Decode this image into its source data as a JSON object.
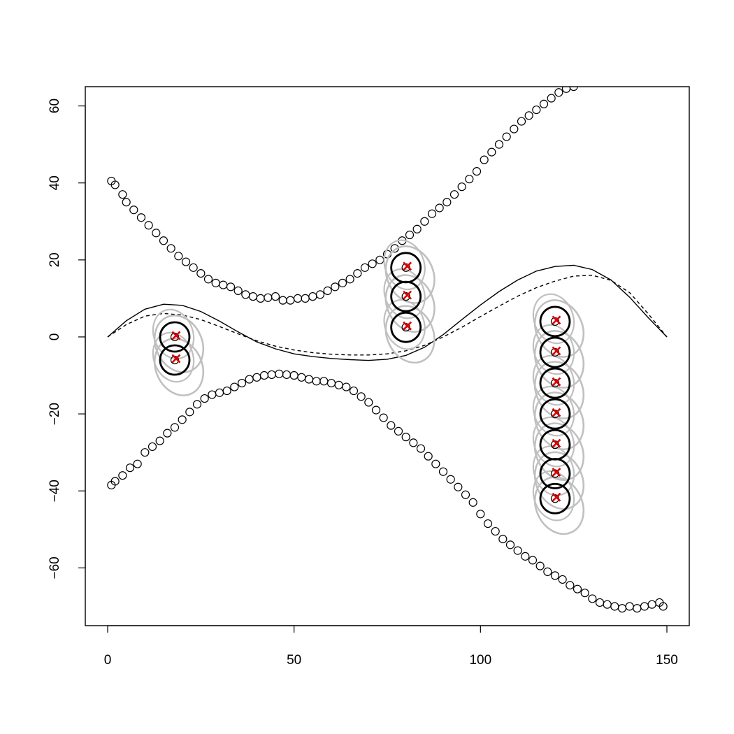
{
  "chart_data": {
    "type": "scatter",
    "title": "",
    "xlabel": "",
    "ylabel": "",
    "xlim": [
      -6,
      156
    ],
    "ylim": [
      -75,
      65
    ],
    "x_ticks": [
      0,
      50,
      100,
      150
    ],
    "y_ticks": [
      -60,
      -40,
      -20,
      0,
      20,
      40,
      60
    ],
    "x_tick_labels": [
      "0",
      "50",
      "100",
      "150"
    ],
    "y_tick_labels": [
      "−60",
      "−40",
      "−20",
      "0",
      "20",
      "40",
      "60"
    ],
    "grid": false,
    "legend": "none",
    "upper_track_points": [
      [
        1,
        40.5
      ],
      [
        2,
        39.5
      ],
      [
        4,
        37
      ],
      [
        5,
        35
      ],
      [
        7,
        33
      ],
      [
        9,
        31
      ],
      [
        11,
        29
      ],
      [
        13,
        27
      ],
      [
        15,
        25
      ],
      [
        17,
        23
      ],
      [
        19,
        21
      ],
      [
        21,
        19.5
      ],
      [
        23,
        18
      ],
      [
        25,
        16.5
      ],
      [
        27,
        15
      ],
      [
        29,
        14
      ],
      [
        31,
        13.5
      ],
      [
        33,
        13
      ],
      [
        35,
        12
      ],
      [
        37,
        11
      ],
      [
        39,
        10.5
      ],
      [
        41,
        10
      ],
      [
        43,
        10.2
      ],
      [
        45,
        10.5
      ],
      [
        47,
        9.5
      ],
      [
        49,
        9.5
      ],
      [
        51,
        10
      ],
      [
        53,
        10
      ],
      [
        55,
        10.5
      ],
      [
        57,
        11
      ],
      [
        59,
        12
      ],
      [
        61,
        13
      ],
      [
        63,
        14
      ],
      [
        65,
        15
      ],
      [
        67,
        16.5
      ],
      [
        69,
        18
      ],
      [
        71,
        19
      ],
      [
        73,
        20
      ],
      [
        75,
        21.5
      ],
      [
        77,
        23
      ],
      [
        79,
        25
      ],
      [
        81,
        26.5
      ],
      [
        83,
        28
      ],
      [
        85,
        30
      ],
      [
        87,
        32
      ],
      [
        89,
        33.5
      ],
      [
        91,
        35
      ],
      [
        93,
        37
      ],
      [
        95,
        39
      ],
      [
        97,
        41
      ],
      [
        99,
        43
      ],
      [
        101,
        46
      ],
      [
        103,
        48
      ],
      [
        105,
        50
      ],
      [
        107,
        52
      ],
      [
        109,
        54
      ],
      [
        111,
        56
      ],
      [
        113,
        57.5
      ],
      [
        115,
        59
      ],
      [
        117,
        60.5
      ],
      [
        119,
        62
      ],
      [
        121,
        63.5
      ],
      [
        123,
        64.5
      ],
      [
        125,
        65
      ]
    ],
    "lower_track_points": [
      [
        1,
        -38.5
      ],
      [
        2,
        -37.5
      ],
      [
        4,
        -36
      ],
      [
        6,
        -34
      ],
      [
        8,
        -33
      ],
      [
        10,
        -30
      ],
      [
        12,
        -28.5
      ],
      [
        14,
        -27
      ],
      [
        16,
        -25
      ],
      [
        18,
        -23.5
      ],
      [
        20,
        -21.5
      ],
      [
        22,
        -19.5
      ],
      [
        24,
        -17.5
      ],
      [
        26,
        -16
      ],
      [
        28,
        -15
      ],
      [
        30,
        -14.5
      ],
      [
        32,
        -14
      ],
      [
        34,
        -13
      ],
      [
        36,
        -12
      ],
      [
        38,
        -11
      ],
      [
        40,
        -10.5
      ],
      [
        42,
        -10
      ],
      [
        44,
        -9.8
      ],
      [
        46,
        -9.6
      ],
      [
        48,
        -9.8
      ],
      [
        50,
        -10
      ],
      [
        52,
        -10.5
      ],
      [
        54,
        -11
      ],
      [
        56,
        -11.5
      ],
      [
        58,
        -11.5
      ],
      [
        60,
        -12
      ],
      [
        62,
        -12.5
      ],
      [
        64,
        -13
      ],
      [
        66,
        -14
      ],
      [
        68,
        -15.5
      ],
      [
        70,
        -17
      ],
      [
        72,
        -19
      ],
      [
        74,
        -21
      ],
      [
        76,
        -23
      ],
      [
        78,
        -24.5
      ],
      [
        80,
        -26
      ],
      [
        82,
        -27.5
      ],
      [
        84,
        -29
      ],
      [
        86,
        -31
      ],
      [
        88,
        -33
      ],
      [
        90,
        -35
      ],
      [
        92,
        -37
      ],
      [
        94,
        -39
      ],
      [
        96,
        -41
      ],
      [
        98,
        -43
      ],
      [
        100,
        -46
      ],
      [
        102,
        -48.5
      ],
      [
        104,
        -50.5
      ],
      [
        106,
        -52.5
      ],
      [
        108,
        -54
      ],
      [
        110,
        -55.5
      ],
      [
        112,
        -57
      ],
      [
        114,
        -58
      ],
      [
        116,
        -59.5
      ],
      [
        118,
        -61
      ],
      [
        120,
        -62
      ],
      [
        122,
        -63
      ],
      [
        124,
        -64.5
      ],
      [
        126,
        -65.5
      ],
      [
        128,
        -66.5
      ],
      [
        130,
        -68
      ],
      [
        132,
        -69
      ],
      [
        134,
        -69.5
      ],
      [
        136,
        -70
      ],
      [
        138,
        -70.5
      ],
      [
        140,
        -70
      ],
      [
        142,
        -70.5
      ],
      [
        144,
        -70
      ],
      [
        146,
        -69.5
      ],
      [
        148,
        -69
      ],
      [
        149,
        -70
      ]
    ],
    "solid_curve": [
      [
        0,
        0
      ],
      [
        5,
        4.2
      ],
      [
        10,
        7.2
      ],
      [
        15,
        8.5
      ],
      [
        20,
        8.2
      ],
      [
        25,
        6.6
      ],
      [
        30,
        4.1
      ],
      [
        35,
        1.3
      ],
      [
        40,
        -1.3
      ],
      [
        45,
        -3.1
      ],
      [
        50,
        -4.4
      ],
      [
        55,
        -5.1
      ],
      [
        60,
        -5.6
      ],
      [
        65,
        -5.9
      ],
      [
        70,
        -6.1
      ],
      [
        75,
        -5.8
      ],
      [
        80,
        -4.8
      ],
      [
        85,
        -2.7
      ],
      [
        90,
        0.6
      ],
      [
        95,
        4.5
      ],
      [
        100,
        8.3
      ],
      [
        105,
        11.8
      ],
      [
        110,
        14.8
      ],
      [
        115,
        17.1
      ],
      [
        120,
        18.3
      ],
      [
        125,
        18.6
      ],
      [
        130,
        17.5
      ],
      [
        135,
        14.8
      ],
      [
        140,
        10.3
      ],
      [
        145,
        5.0
      ],
      [
        150,
        0
      ]
    ],
    "dashed_curve": [
      [
        0,
        0
      ],
      [
        5,
        3.2
      ],
      [
        10,
        5.4
      ],
      [
        15,
        6.1
      ],
      [
        20,
        5.7
      ],
      [
        25,
        4.5
      ],
      [
        30,
        2.7
      ],
      [
        35,
        0.8
      ],
      [
        40,
        -1.0
      ],
      [
        45,
        -2.4
      ],
      [
        50,
        -3.4
      ],
      [
        55,
        -4.1
      ],
      [
        60,
        -4.5
      ],
      [
        65,
        -4.7
      ],
      [
        70,
        -4.7
      ],
      [
        75,
        -4.4
      ],
      [
        80,
        -3.6
      ],
      [
        85,
        -2.2
      ],
      [
        90,
        0.0
      ],
      [
        95,
        2.5
      ],
      [
        100,
        5.3
      ],
      [
        105,
        8.0
      ],
      [
        110,
        10.6
      ],
      [
        115,
        12.8
      ],
      [
        120,
        14.5
      ],
      [
        125,
        15.8
      ],
      [
        130,
        16.0
      ],
      [
        135,
        14.7
      ],
      [
        140,
        11.5
      ],
      [
        145,
        6.0
      ],
      [
        150,
        0
      ]
    ],
    "uncertainty_groups": [
      {
        "x": 18,
        "y_values": [
          0,
          -6
        ]
      },
      {
        "x": 80,
        "y_values": [
          18,
          10.5,
          2.5
        ]
      },
      {
        "x": 120,
        "y_values": [
          4,
          -4,
          -12,
          -20,
          -28,
          -35.5,
          -42
        ]
      }
    ],
    "colors": {
      "points": "#000000",
      "ellipse_outer": "#c0c0c0",
      "circle_inner": "#000000",
      "cross_marker": "#dd0000",
      "axes": "#000000"
    }
  }
}
